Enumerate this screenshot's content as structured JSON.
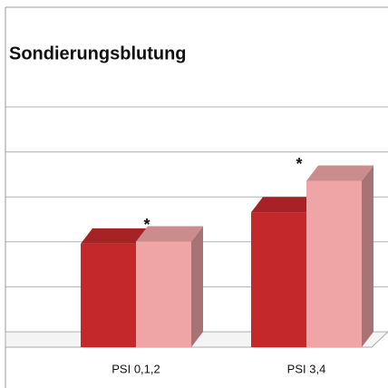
{
  "chart_data": {
    "type": "bar3d",
    "title": "Sondierungsblutung",
    "categories": [
      "PSI 0,1,2",
      "PSI 3,4"
    ],
    "series": [
      {
        "color": "#c4282b",
        "values": [
          2.3,
          3.0
        ]
      },
      {
        "color": "#efa5a6",
        "values": [
          2.35,
          3.7
        ]
      }
    ],
    "annotations": [
      "*",
      "*"
    ],
    "ylim": [
      0,
      5
    ],
    "yticks": [
      0,
      1,
      2,
      3,
      4,
      5
    ],
    "grid": true
  }
}
